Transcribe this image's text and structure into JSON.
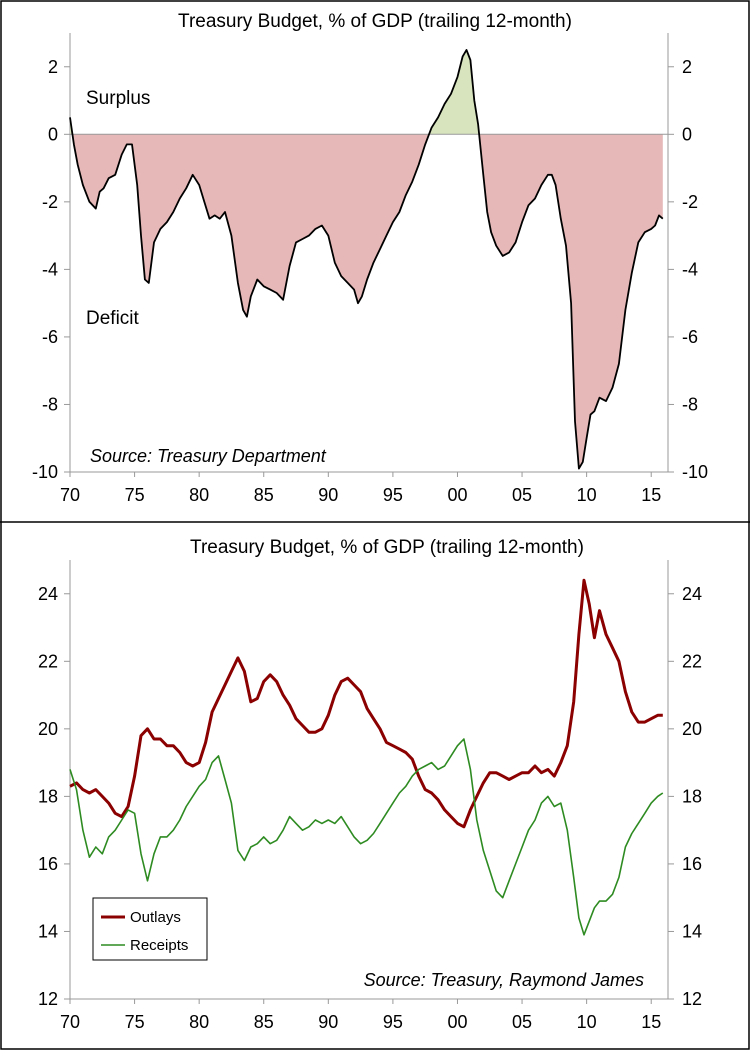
{
  "colors": {
    "frame": "#000000",
    "deficit_fill": "#e6b8b7",
    "surplus_fill": "#d7e4bd",
    "balance_line": "#000000",
    "outlays": "#8b0000",
    "receipts": "#2e8b22"
  },
  "chart_data": [
    {
      "type": "area",
      "title": "Treasury Budget, % of GDP (trailing 12-month)",
      "xlabel": "",
      "ylabel": "",
      "xlim": [
        1970,
        2016.3
      ],
      "ylim": [
        -10,
        3
      ],
      "x_tick_labels": [
        "70",
        "75",
        "80",
        "85",
        "90",
        "95",
        "00",
        "05",
        "10",
        "15"
      ],
      "y_tick_labels": [
        "2",
        "0",
        "-2",
        "-4",
        "-6",
        "-8",
        "-10"
      ],
      "y_tick_values": [
        2,
        0,
        -2,
        -4,
        -6,
        -8,
        -10
      ],
      "annotations": {
        "surplus": "Surplus",
        "deficit": "Deficit"
      },
      "source": "Source: Treasury Department",
      "series": [
        {
          "x": [
            1970.0,
            1970.3,
            1970.6,
            1971.0,
            1971.5,
            1972.0,
            1972.3,
            1972.6,
            1973.0,
            1973.5,
            1974.0,
            1974.4,
            1974.8,
            1975.2,
            1975.5,
            1975.8,
            1976.1,
            1976.5,
            1977.0,
            1977.5,
            1978.0,
            1978.5,
            1979.0,
            1979.5,
            1980.0,
            1980.4,
            1980.8,
            1981.2,
            1981.6,
            1982.0,
            1982.5,
            1983.0,
            1983.4,
            1983.7,
            1984.0,
            1984.5,
            1985.0,
            1985.5,
            1986.0,
            1986.5,
            1987.0,
            1987.5,
            1988.0,
            1988.5,
            1989.0,
            1989.5,
            1990.0,
            1990.5,
            1991.0,
            1991.5,
            1992.0,
            1992.3,
            1992.6,
            1993.0,
            1993.5,
            1994.0,
            1994.5,
            1995.0,
            1995.5,
            1996.0,
            1996.5,
            1997.0,
            1997.5,
            1998.0,
            1998.5,
            1999.0,
            1999.5,
            2000.0,
            2000.4,
            2000.7,
            2001.0,
            2001.3,
            2001.6,
            2002.0,
            2002.3,
            2002.6,
            2003.0,
            2003.5,
            2004.0,
            2004.5,
            2005.0,
            2005.5,
            2006.0,
            2006.5,
            2007.0,
            2007.3,
            2007.6,
            2008.0,
            2008.4,
            2008.8,
            2009.1,
            2009.4,
            2009.7,
            2010.0,
            2010.3,
            2010.6,
            2011.0,
            2011.5,
            2012.0,
            2012.5,
            2013.0,
            2013.5,
            2014.0,
            2014.5,
            2015.0,
            2015.3,
            2015.6,
            2015.9
          ],
          "y": [
            0.5,
            -0.3,
            -0.9,
            -1.5,
            -2.0,
            -2.2,
            -1.7,
            -1.6,
            -1.3,
            -1.2,
            -0.6,
            -0.3,
            -0.3,
            -1.5,
            -3.0,
            -4.3,
            -4.4,
            -3.2,
            -2.8,
            -2.6,
            -2.3,
            -1.9,
            -1.6,
            -1.2,
            -1.5,
            -2.0,
            -2.5,
            -2.4,
            -2.5,
            -2.3,
            -3.0,
            -4.4,
            -5.2,
            -5.4,
            -4.8,
            -4.3,
            -4.5,
            -4.6,
            -4.7,
            -4.9,
            -3.9,
            -3.2,
            -3.1,
            -3.0,
            -2.8,
            -2.7,
            -3.0,
            -3.8,
            -4.2,
            -4.4,
            -4.6,
            -5.0,
            -4.8,
            -4.3,
            -3.8,
            -3.4,
            -3.0,
            -2.6,
            -2.3,
            -1.8,
            -1.4,
            -0.9,
            -0.3,
            0.2,
            0.5,
            0.9,
            1.2,
            1.7,
            2.3,
            2.5,
            2.2,
            1.0,
            0.3,
            -1.2,
            -2.3,
            -2.9,
            -3.3,
            -3.6,
            -3.5,
            -3.2,
            -2.6,
            -2.1,
            -1.9,
            -1.5,
            -1.2,
            -1.2,
            -1.5,
            -2.5,
            -3.3,
            -5.0,
            -8.5,
            -9.9,
            -9.7,
            -9.0,
            -8.3,
            -8.2,
            -7.8,
            -7.9,
            -7.5,
            -6.8,
            -5.2,
            -4.1,
            -3.2,
            -2.9,
            -2.8,
            -2.7,
            -2.4,
            -2.5
          ]
        }
      ]
    },
    {
      "type": "line",
      "title": "Treasury Budget, % of GDP (trailing 12-month)",
      "xlabel": "",
      "ylabel": "",
      "xlim": [
        1970,
        2016.3
      ],
      "ylim": [
        12,
        25
      ],
      "x_tick_labels": [
        "70",
        "75",
        "80",
        "85",
        "90",
        "95",
        "00",
        "05",
        "10",
        "15"
      ],
      "y_tick_labels": [
        "24",
        "22",
        "20",
        "18",
        "16",
        "14",
        "12"
      ],
      "y_tick_values": [
        24,
        22,
        20,
        18,
        16,
        14,
        12
      ],
      "source": "Source: Treasury, Raymond James",
      "legend_position": "bottom-left",
      "series": [
        {
          "name": "Outlays",
          "x": [
            1970.0,
            1970.5,
            1971.0,
            1971.5,
            1972.0,
            1972.5,
            1973.0,
            1973.5,
            1974.0,
            1974.5,
            1975.0,
            1975.5,
            1976.0,
            1976.5,
            1977.0,
            1977.5,
            1978.0,
            1978.5,
            1979.0,
            1979.5,
            1980.0,
            1980.5,
            1981.0,
            1981.5,
            1982.0,
            1982.5,
            1983.0,
            1983.5,
            1984.0,
            1984.5,
            1985.0,
            1985.5,
            1986.0,
            1986.5,
            1987.0,
            1987.5,
            1988.0,
            1988.5,
            1989.0,
            1989.5,
            1990.0,
            1990.5,
            1991.0,
            1991.5,
            1992.0,
            1992.5,
            1993.0,
            1993.5,
            1994.0,
            1994.5,
            1995.0,
            1995.5,
            1996.0,
            1996.5,
            1997.0,
            1997.5,
            1998.0,
            1998.5,
            1999.0,
            1999.5,
            2000.0,
            2000.5,
            2001.0,
            2001.5,
            2002.0,
            2002.5,
            2003.0,
            2003.5,
            2004.0,
            2004.5,
            2005.0,
            2005.5,
            2006.0,
            2006.5,
            2007.0,
            2007.5,
            2008.0,
            2008.5,
            2009.0,
            2009.4,
            2009.8,
            2010.2,
            2010.6,
            2011.0,
            2011.5,
            2012.0,
            2012.5,
            2013.0,
            2013.5,
            2014.0,
            2014.5,
            2015.0,
            2015.5,
            2015.9
          ],
          "y": [
            18.3,
            18.4,
            18.2,
            18.1,
            18.2,
            18.0,
            17.8,
            17.5,
            17.4,
            17.7,
            18.6,
            19.8,
            20.0,
            19.7,
            19.7,
            19.5,
            19.5,
            19.3,
            19.0,
            18.9,
            19.0,
            19.6,
            20.5,
            20.9,
            21.3,
            21.7,
            22.1,
            21.7,
            20.8,
            20.9,
            21.4,
            21.6,
            21.4,
            21.0,
            20.7,
            20.3,
            20.1,
            19.9,
            19.9,
            20.0,
            20.4,
            21.0,
            21.4,
            21.5,
            21.3,
            21.1,
            20.6,
            20.3,
            20.0,
            19.6,
            19.5,
            19.4,
            19.3,
            19.1,
            18.6,
            18.2,
            18.1,
            17.9,
            17.6,
            17.4,
            17.2,
            17.1,
            17.6,
            18.0,
            18.4,
            18.7,
            18.7,
            18.6,
            18.5,
            18.6,
            18.7,
            18.7,
            18.9,
            18.7,
            18.8,
            18.6,
            19.0,
            19.5,
            20.8,
            22.8,
            24.4,
            23.7,
            22.7,
            23.5,
            22.8,
            22.4,
            22.0,
            21.1,
            20.5,
            20.2,
            20.2,
            20.3,
            20.4,
            20.4
          ]
        },
        {
          "name": "Receipts",
          "x": [
            1970.0,
            1970.5,
            1971.0,
            1971.5,
            1972.0,
            1972.5,
            1973.0,
            1973.5,
            1974.0,
            1974.5,
            1975.0,
            1975.5,
            1976.0,
            1976.5,
            1977.0,
            1977.5,
            1978.0,
            1978.5,
            1979.0,
            1979.5,
            1980.0,
            1980.5,
            1981.0,
            1981.5,
            1982.0,
            1982.5,
            1983.0,
            1983.5,
            1984.0,
            1984.5,
            1985.0,
            1985.5,
            1986.0,
            1986.5,
            1987.0,
            1987.5,
            1988.0,
            1988.5,
            1989.0,
            1989.5,
            1990.0,
            1990.5,
            1991.0,
            1991.5,
            1992.0,
            1992.5,
            1993.0,
            1993.5,
            1994.0,
            1994.5,
            1995.0,
            1995.5,
            1996.0,
            1996.5,
            1997.0,
            1997.5,
            1998.0,
            1998.5,
            1999.0,
            1999.5,
            2000.0,
            2000.5,
            2001.0,
            2001.5,
            2002.0,
            2002.5,
            2003.0,
            2003.5,
            2004.0,
            2004.5,
            2005.0,
            2005.5,
            2006.0,
            2006.5,
            2007.0,
            2007.5,
            2008.0,
            2008.5,
            2009.0,
            2009.4,
            2009.8,
            2010.2,
            2010.6,
            2011.0,
            2011.5,
            2012.0,
            2012.5,
            2013.0,
            2013.5,
            2014.0,
            2014.5,
            2015.0,
            2015.5,
            2015.9
          ],
          "y": [
            18.8,
            18.2,
            17.0,
            16.2,
            16.5,
            16.3,
            16.8,
            17.0,
            17.3,
            17.6,
            17.5,
            16.3,
            15.5,
            16.3,
            16.8,
            16.8,
            17.0,
            17.3,
            17.7,
            18.0,
            18.3,
            18.5,
            19.0,
            19.2,
            18.5,
            17.8,
            16.4,
            16.1,
            16.5,
            16.6,
            16.8,
            16.6,
            16.7,
            17.0,
            17.4,
            17.2,
            17.0,
            17.1,
            17.3,
            17.2,
            17.3,
            17.2,
            17.4,
            17.1,
            16.8,
            16.6,
            16.7,
            16.9,
            17.2,
            17.5,
            17.8,
            18.1,
            18.3,
            18.6,
            18.8,
            18.9,
            19.0,
            18.8,
            18.9,
            19.2,
            19.5,
            19.7,
            18.8,
            17.3,
            16.4,
            15.8,
            15.2,
            15.0,
            15.5,
            16.0,
            16.5,
            17.0,
            17.3,
            17.8,
            18.0,
            17.7,
            17.8,
            17.0,
            15.6,
            14.4,
            13.9,
            14.3,
            14.7,
            14.9,
            14.9,
            15.1,
            15.6,
            16.5,
            16.9,
            17.2,
            17.5,
            17.8,
            18.0,
            18.1
          ]
        }
      ]
    }
  ]
}
